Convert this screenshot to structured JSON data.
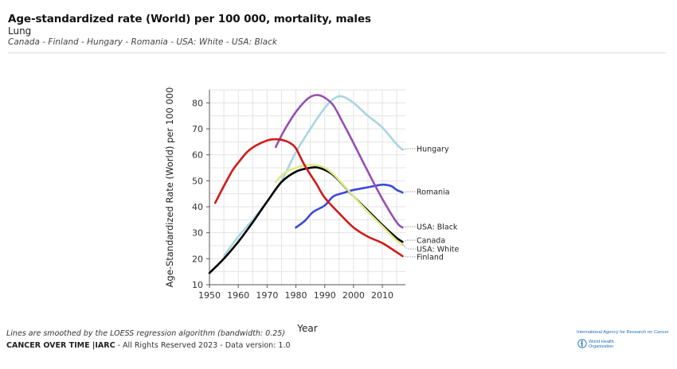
{
  "header": {
    "title": "Age-standardized rate (World) per 100 000, mortality, males",
    "subtitle": "Lung",
    "countries": "Canada - Finland - Hungary - Romania - USA: White - USA: Black"
  },
  "footer": {
    "note": "Lines are smoothed by the LOESS regression algorithm (bandwidth: 0.25)",
    "brand": "CANCER OVER TIME |IARC",
    "rights": " - All Rights Reserved 2023 - Data version: 1.0",
    "logo_iarc": "International Agency for Research on Cancer",
    "logo_who_line1": "World Health",
    "logo_who_line2": "Organization"
  },
  "chart_data": {
    "type": "line",
    "title": "Age-standardized rate (World) per 100 000, mortality, males",
    "xlabel": "Year",
    "ylabel": "Age-Standardized Rate (World) per 100 000",
    "xlim": [
      1950,
      2018
    ],
    "ylim": [
      10,
      85
    ],
    "xticks": [
      1950,
      1960,
      1970,
      1980,
      1990,
      2000,
      2010
    ],
    "yticks": [
      10,
      20,
      30,
      40,
      50,
      60,
      70,
      80
    ],
    "grid": true,
    "series": [
      {
        "name": "Hungary",
        "color": "#a9d6e0",
        "x": [
          1955,
          1960,
          1965,
          1970,
          1975,
          1980,
          1985,
          1990,
          1993,
          1996,
          2000,
          2005,
          2010,
          2015,
          2017
        ],
        "y": [
          21,
          28.5,
          35,
          42,
          50,
          61,
          70,
          78,
          81.5,
          82.5,
          80,
          75,
          70.5,
          64,
          62
        ]
      },
      {
        "name": "Romania",
        "color": "#3a4ad9",
        "x": [
          1980,
          1983,
          1986,
          1990,
          1993,
          1997,
          2000,
          2005,
          2010,
          2013,
          2015,
          2017
        ],
        "y": [
          32,
          34.5,
          38,
          40.5,
          44,
          45.5,
          46.5,
          47.5,
          48.5,
          48,
          46.5,
          45.5
        ]
      },
      {
        "name": "USA: Black",
        "color": "#9650b2",
        "x": [
          1973,
          1976,
          1980,
          1984,
          1987,
          1990,
          1993,
          1996,
          2000,
          2005,
          2010,
          2015,
          2017
        ],
        "y": [
          63,
          69.5,
          76.5,
          81.5,
          83,
          82,
          79,
          73,
          64.5,
          53.5,
          43,
          34,
          32
        ]
      },
      {
        "name": "Canada",
        "color": "#000000",
        "x": [
          1950,
          1955,
          1960,
          1965,
          1970,
          1975,
          1980,
          1985,
          1988,
          1992,
          1995,
          2000,
          2005,
          2010,
          2015,
          2017
        ],
        "y": [
          14.5,
          20,
          26.5,
          34,
          42,
          49.5,
          53.5,
          55,
          55,
          53,
          50,
          44,
          38.5,
          33,
          28,
          26.5
        ]
      },
      {
        "name": "USA: White",
        "color": "#dfea8a",
        "x": [
          1973,
          1976,
          1980,
          1984,
          1987,
          1990,
          1993,
          1996,
          2000,
          2005,
          2010,
          2015,
          2017
        ],
        "y": [
          49.5,
          53,
          55,
          56,
          56,
          55,
          52.5,
          49,
          44,
          38,
          32.5,
          27,
          25.5
        ]
      },
      {
        "name": "Finland",
        "color": "#d21a1a",
        "x": [
          1952,
          1955,
          1958,
          1960,
          1963,
          1966,
          1970,
          1973,
          1976,
          1978,
          1980,
          1983,
          1987,
          1990,
          1995,
          2000,
          2005,
          2010,
          2015,
          2017
        ],
        "y": [
          41.5,
          48,
          54,
          57,
          61,
          63.5,
          65.5,
          66,
          65.5,
          64.5,
          62.5,
          56,
          49,
          43.5,
          37.5,
          32,
          28.5,
          26,
          22.5,
          21
        ]
      }
    ],
    "end_labels": [
      {
        "series": "Hungary",
        "text": "Hungary",
        "at": 62
      },
      {
        "series": "Romania",
        "text": "Romania",
        "at": 45.5
      },
      {
        "series": "USA: Black",
        "text": "USA: Black",
        "at": 32
      },
      {
        "series": "Canada",
        "text": "Canada",
        "at": 26.5
      },
      {
        "series": "USA: White",
        "text": "USA: White",
        "at": 25.5
      },
      {
        "series": "Finland",
        "text": "Finland",
        "at": 21
      }
    ]
  }
}
